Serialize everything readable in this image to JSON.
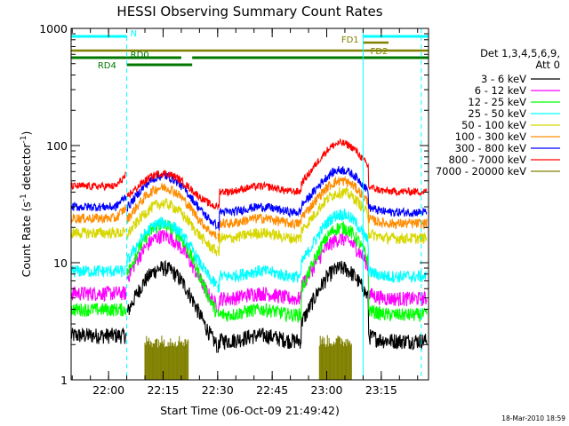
{
  "chart_data": {
    "type": "line",
    "title": "HESSI Observing Summary Count Rates",
    "xlabel": "Start Time (06-Oct-09 21:49:42)",
    "ylabel_parts": [
      "Count Rate (s",
      "-1",
      " detector",
      "-1",
      ")"
    ],
    "yscale": "log",
    "xlim": [
      "21:49:42",
      "23:28"
    ],
    "ylim": [
      1,
      1000
    ],
    "xticks": [
      "22:00",
      "22:15",
      "22:30",
      "22:45",
      "23:00",
      "23:15"
    ],
    "yticks": [
      "1",
      "10",
      "100",
      "1000"
    ],
    "grid": false,
    "legend_position": "right",
    "legend_header": [
      "Det 1,3,4,5,6,9,",
      "Att 0"
    ],
    "colors": {
      "3 - 6 keV": "#000000",
      "6 - 12 keV": "#ff00ff",
      "12 - 25 keV": "#00ff00",
      "25 - 50 keV": "#00ffff",
      "50 - 100 keV": "#d7d700",
      "100 - 300 keV": "#ff8c00",
      "300 - 800 keV": "#0000ff",
      "800 - 7000 keV": "#ff0000",
      "7000 - 20000 keV": "#808000"
    },
    "series": [
      {
        "name": "3 - 6 keV",
        "night_level": 2.4,
        "pass1_peak": 9,
        "pass2_peak": 9
      },
      {
        "name": "6 - 12 keV",
        "night_level": 5.5,
        "pass1_peak": 17,
        "pass2_peak": 16
      },
      {
        "name": "12 - 25 keV",
        "night_level": 4.0,
        "pass1_peak": 21,
        "pass2_peak": 20
      },
      {
        "name": "25 - 50 keV",
        "night_level": 8.5,
        "pass1_peak": 22,
        "pass2_peak": 26
      },
      {
        "name": "50 - 100 keV",
        "night_level": 18,
        "pass1_peak": 32,
        "pass2_peak": 40
      },
      {
        "name": "100 - 300 keV",
        "night_level": 24,
        "pass1_peak": 44,
        "pass2_peak": 50
      },
      {
        "name": "300 - 800 keV",
        "night_level": 30,
        "pass1_peak": 55,
        "pass2_peak": 62
      },
      {
        "name": "800 - 7000 keV",
        "night_level": 45,
        "pass1_peak": 58,
        "pass2_peak": 105
      },
      {
        "name": "7000 - 20000 keV",
        "burst_level": 2.1
      }
    ],
    "bars": [
      {
        "label": "N",
        "color": "#00ffff",
        "start": "21:49:42",
        "end": "22:05",
        "row": 1,
        "label_at": "22:06"
      },
      {
        "label": "N",
        "color": "#00ffff",
        "start": "23:10",
        "end": "23:28",
        "row": 1
      },
      {
        "label": "FD1",
        "color": "#808000",
        "start": "23:10",
        "end": "23:17",
        "row": 2,
        "label_at": "23:04"
      },
      {
        "label": "FD2",
        "color": "#808000",
        "start": "21:49:42",
        "end": "23:28",
        "row": 3,
        "label_at": "23:12"
      },
      {
        "label": "RD0",
        "color": "#007800",
        "start": "21:49:42",
        "end": "22:20",
        "row": 4,
        "label_at": "22:06"
      },
      {
        "label": "RD0",
        "color": "#007800",
        "start": "22:23",
        "end": "23:28",
        "row": 4
      },
      {
        "label": "RD4",
        "color": "#007800",
        "start": "22:05",
        "end": "22:23",
        "row": 5,
        "label_at": "21:57"
      }
    ],
    "vlines": [
      {
        "time": "21:49:42",
        "style": "solid"
      },
      {
        "time": "22:05",
        "style": "dashed"
      },
      {
        "time": "23:10",
        "style": "solid"
      },
      {
        "time": "23:26",
        "style": "dashed"
      }
    ],
    "footer_stamp": "18-Mar-2010 18:59"
  }
}
